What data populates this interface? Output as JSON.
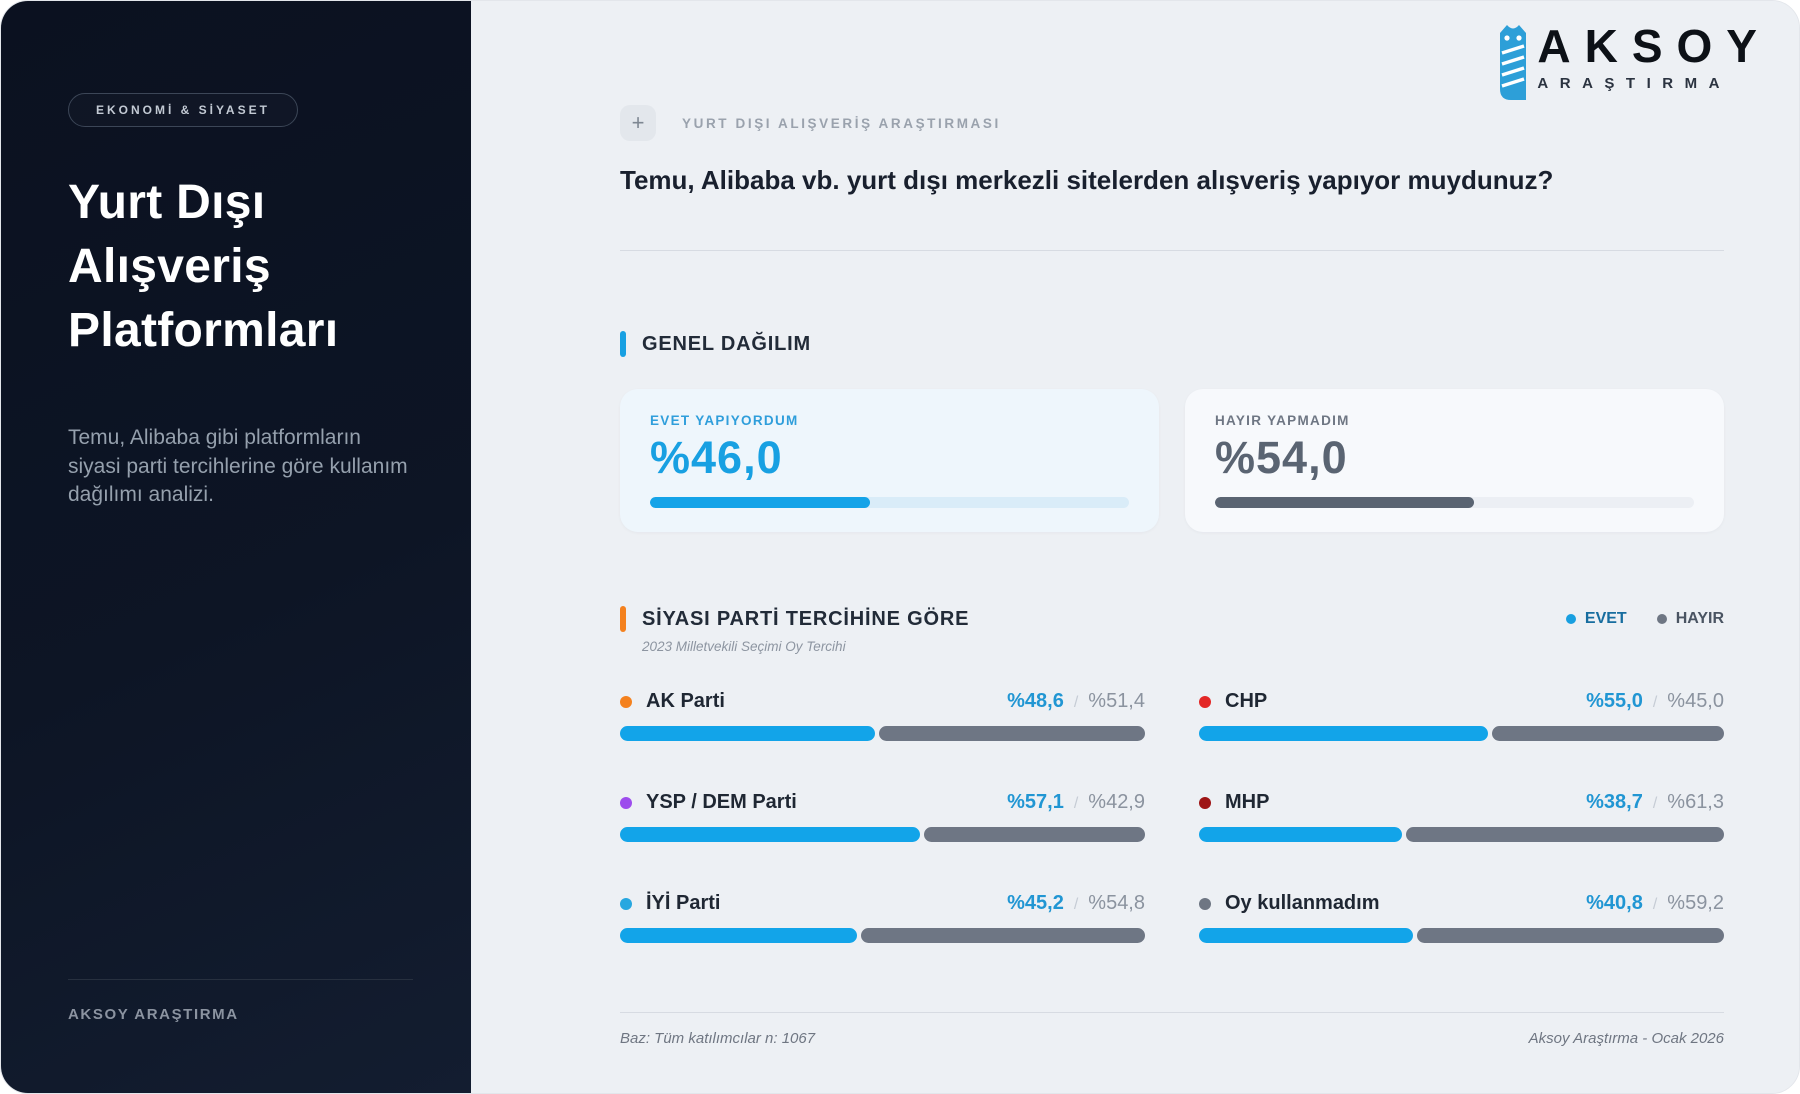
{
  "brand": {
    "name": "AKSOY",
    "subtitle": "ARAŞTIRMA",
    "owl_color": "#2d9fd8"
  },
  "sidebar": {
    "badge": "EKONOMİ & SİYASET",
    "title_line1": "Yurt Dışı",
    "title_line2": "Alışveriş",
    "title_line3": "Platformları",
    "description": "Temu, Alibaba gibi platformların siyasi parti tercihlerine göre kullanım dağılımı analizi.",
    "footer": "AKSOY ARAŞTIRMA"
  },
  "header": {
    "plus": "+",
    "tag": "YURT DIŞI ALIŞVERİŞ ARAŞTIRMASI",
    "question": "Temu, Alibaba vb. yurt dışı merkezli sitelerden alışveriş yapıyor muydunuz?"
  },
  "general": {
    "title": "GENEL DAĞILIM",
    "accent": "#18a0e2",
    "cards": [
      {
        "label": "EVET YAPIYORDUM",
        "value": "%46,0",
        "percent": 46,
        "color": "#14a3e8"
      },
      {
        "label": "HAYIR YAPMADIM",
        "value": "%54,0",
        "percent": 54,
        "color": "#5a6472"
      }
    ]
  },
  "party": {
    "title": "SİYASI PARTİ TERCİHİNE GÖRE",
    "accent": "#f4811e",
    "subtitle": "2023 Milletvekili Seçimi Oy Tercihi",
    "legend": [
      {
        "label": "EVET",
        "color": "#189fe0"
      },
      {
        "label": "HAYIR",
        "color": "#6e7683"
      }
    ],
    "bar_colors": {
      "evet": "#12a4e9",
      "hayir": "#6e7684"
    },
    "rows": [
      {
        "name": "AK Parti",
        "dot": "#f4811e",
        "evet": "%48,6",
        "slash": "/",
        "hayir": "%51,4",
        "evet_pct": 48.6,
        "hayir_pct": 51.4
      },
      {
        "name": "CHP",
        "dot": "#e32726",
        "evet": "%55,0",
        "slash": "/",
        "hayir": "%45,0",
        "evet_pct": 55.0,
        "hayir_pct": 45.0
      },
      {
        "name": "YSP / DEM Parti",
        "dot": "#9d4ced",
        "evet": "%57,1",
        "slash": "/",
        "hayir": "%42,9",
        "evet_pct": 57.1,
        "hayir_pct": 42.9
      },
      {
        "name": "MHP",
        "dot": "#9e1515",
        "evet": "%38,7",
        "slash": "/",
        "hayir": "%61,3",
        "evet_pct": 38.7,
        "hayir_pct": 61.3
      },
      {
        "name": "İYİ Parti",
        "dot": "#27a7e0",
        "evet": "%45,2",
        "slash": "/",
        "hayir": "%54,8",
        "evet_pct": 45.2,
        "hayir_pct": 54.8
      },
      {
        "name": "Oy kullanmadım",
        "dot": "#6e7683",
        "evet": "%40,8",
        "slash": "/",
        "hayir": "%59,2",
        "evet_pct": 40.8,
        "hayir_pct": 59.2
      }
    ]
  },
  "footer": {
    "left": "Baz: Tüm katılımcılar n: 1067",
    "right": "Aksoy Araştırma - Ocak 2026"
  },
  "chart_data": {
    "type": "bar",
    "title": "Temu, Alibaba vb. yurt dışı merkezli sitelerden alışveriş yapıyor muydunuz?",
    "units": "%",
    "overall": {
      "categories": [
        "EVET YAPIYORDUM",
        "HAYIR YAPMADIM"
      ],
      "values": [
        46.0,
        54.0
      ]
    },
    "by_party": {
      "subtitle": "2023 Milletvekili Seçimi Oy Tercihi",
      "categories": [
        "AK Parti",
        "CHP",
        "YSP / DEM Parti",
        "MHP",
        "İYİ Parti",
        "Oy kullanmadım"
      ],
      "series": [
        {
          "name": "EVET",
          "values": [
            48.6,
            55.0,
            57.1,
            38.7,
            45.2,
            40.8
          ]
        },
        {
          "name": "HAYIR",
          "values": [
            51.4,
            45.0,
            42.9,
            61.3,
            54.8,
            59.2
          ]
        }
      ],
      "legend_position": "top-right"
    },
    "sample_note": "Baz: Tüm katılımcılar n: 1067",
    "source": "Aksoy Araştırma - Ocak 2026"
  }
}
